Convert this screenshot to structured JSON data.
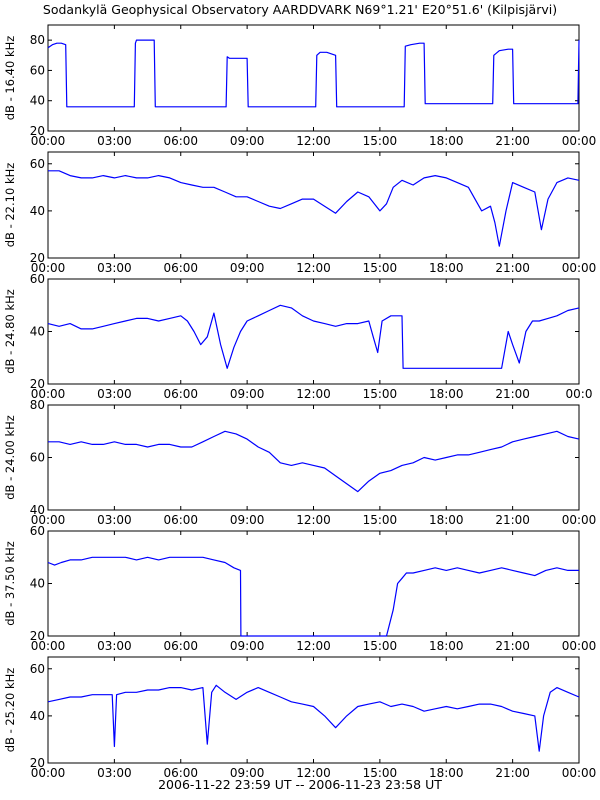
{
  "title": "Sodankylä Geophysical Observatory AARDDVARK N69°1.21' E20°51.6' (Kilpisjärvi)",
  "footer": "2006-11-22 23:59 UT -- 2006-11-23 23:58 UT",
  "colors": {
    "trace": "#0000ff",
    "axis": "#000000",
    "background": "#ffffff"
  },
  "chart_data": [
    {
      "type": "line",
      "ylabel": "dB - 16.40 kHz",
      "ylim": [
        20,
        90
      ],
      "yticks": [
        "20",
        "40",
        "60",
        "80"
      ],
      "xticks": [
        "00:00",
        "03:00",
        "06:00",
        "09:00",
        "12:00",
        "15:00",
        "18:00",
        "21:00",
        "00:00"
      ],
      "xlim": [
        0,
        24
      ],
      "series": [
        {
          "x": [
            0,
            0.2,
            0.4,
            0.6,
            0.8,
            0.85,
            3.9,
            3.95,
            4.0,
            4.4,
            4.8,
            4.85,
            8.05,
            8.1,
            8.2,
            8.6,
            9.0,
            9.05,
            12.1,
            12.15,
            12.3,
            12.6,
            13.0,
            13.05,
            16.1,
            16.15,
            16.4,
            16.8,
            17.0,
            17.05,
            20.1,
            20.15,
            20.4,
            20.8,
            21.0,
            21.05,
            23.95,
            24.0
          ],
          "y": [
            75,
            77,
            78,
            78,
            77,
            36,
            36,
            78,
            80,
            80,
            80,
            36,
            36,
            69,
            68,
            68,
            68,
            36,
            36,
            70,
            72,
            72,
            70,
            36,
            36,
            76,
            77,
            78,
            78,
            38,
            38,
            70,
            73,
            74,
            74,
            38,
            38,
            80
          ]
        }
      ]
    },
    {
      "type": "line",
      "ylabel": "dB - 22.10 kHz",
      "ylim": [
        20,
        65
      ],
      "yticks": [
        "20",
        "40",
        "60"
      ],
      "xticks": [
        "00:00",
        "03:00",
        "06:00",
        "09:00",
        "12:00",
        "15:00",
        "18:00",
        "21:00",
        "00:00"
      ],
      "xlim": [
        0,
        24
      ],
      "series": [
        {
          "x": [
            0,
            0.5,
            1.0,
            1.5,
            2.0,
            2.5,
            3.0,
            3.5,
            4.0,
            4.5,
            5.0,
            5.5,
            6.0,
            6.5,
            7.0,
            7.5,
            8.0,
            8.5,
            9.0,
            9.5,
            10.0,
            10.5,
            11.0,
            11.5,
            12.0,
            12.5,
            13.0,
            13.5,
            14.0,
            14.5,
            15.0,
            15.3,
            15.6,
            16.0,
            16.5,
            17.0,
            17.5,
            18.0,
            18.5,
            19.0,
            19.3,
            19.6,
            20.0,
            20.2,
            20.4,
            20.7,
            21.0,
            21.5,
            22.0,
            22.3,
            22.6,
            23.0,
            23.5,
            24.0
          ],
          "y": [
            57,
            57,
            55,
            54,
            54,
            55,
            54,
            55,
            54,
            54,
            55,
            54,
            52,
            51,
            50,
            50,
            48,
            46,
            46,
            44,
            42,
            41,
            43,
            45,
            45,
            42,
            39,
            44,
            48,
            46,
            40,
            43,
            50,
            53,
            51,
            54,
            55,
            54,
            52,
            50,
            45,
            40,
            42,
            35,
            25,
            40,
            52,
            50,
            48,
            32,
            45,
            52,
            54,
            53
          ]
        }
      ]
    },
    {
      "type": "line",
      "ylabel": "dB - 24.80 kHz",
      "ylim": [
        20,
        60
      ],
      "yticks": [
        "20",
        "40",
        "60"
      ],
      "xticks": [
        "00:00",
        "03:00",
        "06:00",
        "09:00",
        "12:00",
        "15:00",
        "18:00",
        "21:00",
        "00:0"
      ],
      "xlim": [
        0,
        24
      ],
      "series": [
        {
          "x": [
            0,
            0.5,
            1.0,
            1.5,
            2.0,
            2.5,
            3.0,
            3.5,
            4.0,
            4.5,
            5.0,
            5.5,
            6.0,
            6.3,
            6.6,
            6.9,
            7.2,
            7.5,
            7.8,
            8.1,
            8.4,
            8.7,
            9.0,
            9.5,
            10.0,
            10.5,
            11.0,
            11.5,
            12.0,
            12.5,
            13.0,
            13.5,
            14.0,
            14.5,
            14.7,
            14.9,
            15.1,
            15.5,
            16.0,
            16.05,
            17.0,
            18.0,
            19.0,
            20.0,
            20.5,
            20.8,
            21.0,
            21.3,
            21.6,
            21.9,
            22.2,
            22.6,
            23.0,
            23.5,
            24.0
          ],
          "y": [
            43,
            42,
            43,
            41,
            41,
            42,
            43,
            44,
            45,
            45,
            44,
            45,
            46,
            44,
            40,
            35,
            38,
            47,
            35,
            26,
            34,
            40,
            44,
            46,
            48,
            50,
            49,
            46,
            44,
            43,
            42,
            43,
            43,
            44,
            38,
            32,
            44,
            46,
            46,
            26,
            26,
            26,
            26,
            26,
            26,
            40,
            35,
            28,
            40,
            44,
            44,
            45,
            46,
            48,
            49
          ]
        }
      ]
    },
    {
      "type": "line",
      "ylabel": "dB - 24.00 kHz",
      "ylim": [
        40,
        80
      ],
      "yticks": [
        "40",
        "60",
        "80"
      ],
      "xticks": [
        "00:00",
        "03:00",
        "06:00",
        "09:00",
        "12:00",
        "15:00",
        "18:00",
        "21:00",
        "00:00"
      ],
      "xlim": [
        0,
        24
      ],
      "series": [
        {
          "x": [
            0,
            0.5,
            1.0,
            1.5,
            2.0,
            2.5,
            3.0,
            3.5,
            4.0,
            4.5,
            5.0,
            5.5,
            6.0,
            6.5,
            7.0,
            7.5,
            8.0,
            8.5,
            9.0,
            9.5,
            10.0,
            10.5,
            11.0,
            11.5,
            12.0,
            12.5,
            13.0,
            13.5,
            14.0,
            14.5,
            15.0,
            15.5,
            16.0,
            16.5,
            17.0,
            17.5,
            18.0,
            18.5,
            19.0,
            19.5,
            20.0,
            20.5,
            21.0,
            21.5,
            22.0,
            22.5,
            23.0,
            23.5,
            24.0
          ],
          "y": [
            66,
            66,
            65,
            66,
            65,
            65,
            66,
            65,
            65,
            64,
            65,
            65,
            64,
            64,
            66,
            68,
            70,
            69,
            67,
            64,
            62,
            58,
            57,
            58,
            57,
            56,
            53,
            50,
            47,
            51,
            54,
            55,
            57,
            58,
            60,
            59,
            60,
            61,
            61,
            62,
            63,
            64,
            66,
            67,
            68,
            69,
            70,
            68,
            67
          ]
        }
      ]
    },
    {
      "type": "line",
      "ylabel": "dB - 37.50 kHz",
      "ylim": [
        20,
        60
      ],
      "yticks": [
        "20",
        "40",
        "60"
      ],
      "xticks": [
        "00:00",
        "03:00",
        "06:00",
        "09:00",
        "12:00",
        "15:00",
        "18:00",
        "21:00",
        "00:00"
      ],
      "xlim": [
        0,
        24
      ],
      "series": [
        {
          "x": [
            0,
            0.3,
            0.6,
            1.0,
            1.5,
            2.0,
            2.5,
            3.0,
            3.5,
            4.0,
            4.5,
            5.0,
            5.5,
            6.0,
            6.5,
            7.0,
            7.5,
            8.0,
            8.4,
            8.7,
            8.72,
            15.3,
            15.6,
            15.8,
            16.0,
            16.2,
            16.5,
            17.0,
            17.5,
            18.0,
            18.5,
            19.0,
            19.5,
            20.0,
            20.5,
            21.0,
            21.5,
            22.0,
            22.5,
            23.0,
            23.5,
            24.0
          ],
          "y": [
            48,
            47,
            48,
            49,
            49,
            50,
            50,
            50,
            50,
            49,
            50,
            49,
            50,
            50,
            50,
            50,
            49,
            48,
            46,
            45,
            20,
            20,
            30,
            40,
            42,
            44,
            44,
            45,
            46,
            45,
            46,
            45,
            44,
            45,
            46,
            45,
            44,
            43,
            45,
            46,
            45,
            45
          ]
        }
      ]
    },
    {
      "type": "line",
      "ylabel": "dB - 25.20 kHz",
      "ylim": [
        20,
        65
      ],
      "yticks": [
        "20",
        "40",
        "60"
      ],
      "xticks": [
        "00:00",
        "03:00",
        "06:00",
        "09:00",
        "12:00",
        "15:00",
        "18:00",
        "21:00",
        "00:00"
      ],
      "xlim": [
        0,
        24
      ],
      "series": [
        {
          "x": [
            0,
            0.5,
            1.0,
            1.5,
            2.0,
            2.5,
            2.9,
            3.0,
            3.1,
            3.5,
            4.0,
            4.5,
            5.0,
            5.5,
            6.0,
            6.5,
            7.0,
            7.2,
            7.4,
            7.6,
            8.0,
            8.5,
            9.0,
            9.5,
            10.0,
            10.5,
            11.0,
            11.5,
            12.0,
            12.5,
            13.0,
            13.5,
            14.0,
            14.5,
            15.0,
            15.5,
            16.0,
            16.5,
            17.0,
            17.5,
            18.0,
            18.5,
            19.0,
            19.5,
            20.0,
            20.5,
            21.0,
            21.5,
            22.0,
            22.2,
            22.4,
            22.7,
            23.0,
            23.5,
            24.0
          ],
          "y": [
            46,
            47,
            48,
            48,
            49,
            49,
            49,
            27,
            49,
            50,
            50,
            51,
            51,
            52,
            52,
            51,
            52,
            28,
            50,
            53,
            50,
            47,
            50,
            52,
            50,
            48,
            46,
            45,
            44,
            40,
            35,
            40,
            44,
            45,
            46,
            44,
            45,
            44,
            42,
            43,
            44,
            43,
            44,
            45,
            45,
            44,
            42,
            41,
            40,
            25,
            40,
            50,
            52,
            50,
            48
          ]
        }
      ]
    }
  ]
}
